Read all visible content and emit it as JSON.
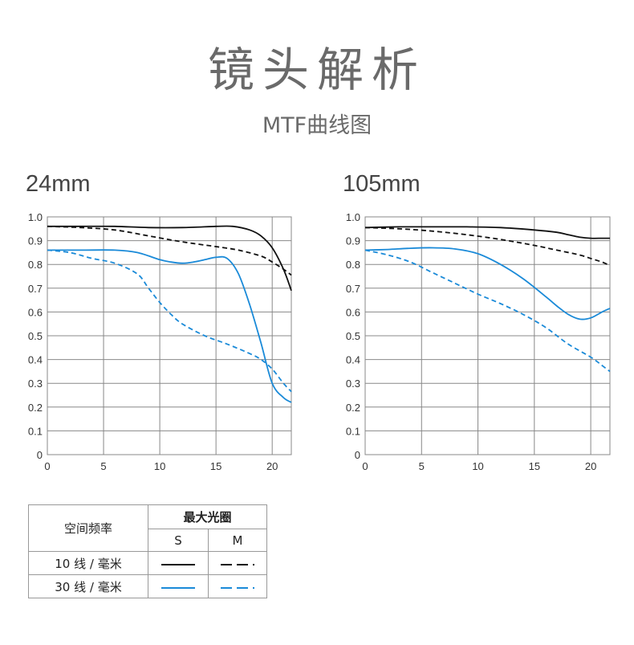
{
  "title": "镜头解析",
  "subtitle": "MTF曲线图",
  "chart_data": [
    {
      "type": "line",
      "title": "24mm",
      "xlim": [
        0,
        21.7
      ],
      "ylim": [
        0,
        1.0
      ],
      "x_ticks": [
        "0",
        "5",
        "10",
        "15",
        "20"
      ],
      "y_ticks": [
        "0",
        "0.1",
        "0.2",
        "0.3",
        "0.4",
        "0.5",
        "0.6",
        "0.7",
        "0.8",
        "0.9",
        "1.0"
      ],
      "grid": true,
      "series": [
        {
          "style": "10-S",
          "color": "#111111",
          "dashed": false,
          "x": [
            0,
            3,
            6,
            9,
            12,
            15,
            16.5,
            18,
            19,
            20,
            21,
            21.7
          ],
          "y": [
            0.96,
            0.96,
            0.96,
            0.955,
            0.955,
            0.96,
            0.96,
            0.945,
            0.92,
            0.87,
            0.78,
            0.69
          ]
        },
        {
          "style": "10-M",
          "color": "#111111",
          "dashed": false,
          "dash": true,
          "x": [
            0,
            3,
            6,
            9,
            12,
            15,
            17,
            19,
            20,
            21,
            21.7
          ],
          "y": [
            0.96,
            0.955,
            0.945,
            0.92,
            0.895,
            0.875,
            0.86,
            0.835,
            0.81,
            0.78,
            0.755
          ]
        },
        {
          "style": "30-S",
          "color": "#1a8ad8",
          "dashed": false,
          "x": [
            0,
            3,
            6,
            8,
            10,
            11,
            12,
            13,
            14,
            15,
            16,
            17,
            18,
            19,
            20,
            21,
            21.7
          ],
          "y": [
            0.86,
            0.86,
            0.86,
            0.85,
            0.82,
            0.81,
            0.805,
            0.81,
            0.82,
            0.83,
            0.825,
            0.76,
            0.63,
            0.47,
            0.3,
            0.24,
            0.22
          ]
        },
        {
          "style": "30-M",
          "color": "#1a8ad8",
          "dashed": true,
          "x": [
            0,
            2,
            4,
            6,
            8,
            9,
            10,
            11,
            12,
            14,
            16,
            18,
            19,
            20,
            21,
            21.7
          ],
          "y": [
            0.86,
            0.85,
            0.825,
            0.805,
            0.76,
            0.7,
            0.64,
            0.59,
            0.55,
            0.5,
            0.465,
            0.425,
            0.4,
            0.36,
            0.3,
            0.265
          ]
        }
      ]
    },
    {
      "type": "line",
      "title": "105mm",
      "xlim": [
        0,
        21.7
      ],
      "ylim": [
        0,
        1.0
      ],
      "x_ticks": [
        "0",
        "5",
        "10",
        "15",
        "20"
      ],
      "y_ticks": [
        "0",
        "0.1",
        "0.2",
        "0.3",
        "0.4",
        "0.5",
        "0.6",
        "0.7",
        "0.8",
        "0.9",
        "1.0"
      ],
      "grid": true,
      "series": [
        {
          "style": "10-S",
          "color": "#111111",
          "dashed": false,
          "x": [
            0,
            3,
            6,
            9,
            12,
            15,
            17,
            18,
            19,
            20,
            21,
            21.7
          ],
          "y": [
            0.955,
            0.958,
            0.958,
            0.958,
            0.955,
            0.945,
            0.935,
            0.925,
            0.915,
            0.91,
            0.91,
            0.91
          ]
        },
        {
          "style": "10-M",
          "color": "#111111",
          "dashed": true,
          "x": [
            0,
            3,
            6,
            9,
            12,
            15,
            17,
            19,
            20,
            21,
            21.7
          ],
          "y": [
            0.955,
            0.95,
            0.94,
            0.925,
            0.905,
            0.88,
            0.86,
            0.84,
            0.825,
            0.81,
            0.795
          ]
        },
        {
          "style": "30-S",
          "color": "#1a8ad8",
          "dashed": false,
          "x": [
            0,
            2,
            4,
            6,
            8,
            10,
            12,
            14,
            16,
            17,
            18,
            19,
            20,
            21,
            21.7
          ],
          "y": [
            0.86,
            0.863,
            0.868,
            0.87,
            0.865,
            0.845,
            0.8,
            0.74,
            0.665,
            0.625,
            0.59,
            0.57,
            0.575,
            0.6,
            0.615
          ]
        },
        {
          "style": "30-M",
          "color": "#1a8ad8",
          "dashed": true,
          "x": [
            0,
            2,
            4,
            6,
            8,
            10,
            12,
            14,
            16,
            18,
            20,
            21,
            21.7
          ],
          "y": [
            0.86,
            0.84,
            0.81,
            0.765,
            0.72,
            0.675,
            0.635,
            0.59,
            0.535,
            0.465,
            0.41,
            0.375,
            0.35
          ]
        }
      ]
    }
  ],
  "legend": {
    "freq_header": "空间频率",
    "aperture_header": "最大光圈",
    "s_label": "S",
    "m_label": "M",
    "rows": [
      {
        "label": "10 线 / 毫米",
        "color": "#111111"
      },
      {
        "label": "30 线 / 毫米",
        "color": "#1a8ad8"
      }
    ]
  }
}
